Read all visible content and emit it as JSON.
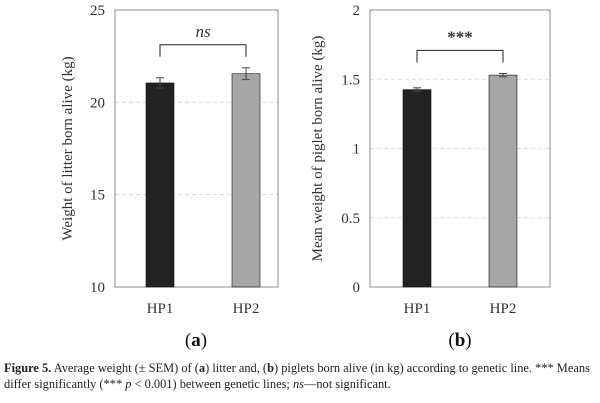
{
  "chart_data": [
    {
      "type": "bar",
      "panel_label": "a",
      "categories": [
        "HP1",
        "HP2"
      ],
      "values": [
        21.05,
        21.55
      ],
      "errors": [
        0.28,
        0.32
      ],
      "ylabel": "Weight of litter born alive (kg)",
      "ylim": [
        10,
        25
      ],
      "yticks": [
        "10",
        "15",
        "20",
        "25"
      ],
      "grid": true,
      "significance": "ns",
      "colors": [
        "#222222",
        "#a6a6a6"
      ]
    },
    {
      "type": "bar",
      "panel_label": "b",
      "categories": [
        "HP1",
        "HP2"
      ],
      "values": [
        1.425,
        1.53
      ],
      "errors": [
        0.013,
        0.012
      ],
      "ylabel": "Mean weight of piglet born alive (kg)",
      "ylim": [
        0,
        2
      ],
      "yticks": [
        "0",
        "0.5",
        "1",
        "1.5",
        "2"
      ],
      "grid": true,
      "significance": "***",
      "colors": [
        "#222222",
        "#a6a6a6"
      ]
    }
  ],
  "caption": {
    "figure_label": "Figure 5.",
    "part1": " Average weight (± SEM) of (",
    "a": "a",
    "part2": ") litter and, (",
    "b": "b",
    "part3": ") piglets born alive (in kg) according to genetic line. *** Means differ significantly (*** ",
    "p": "p",
    "part4": " < 0.001) between genetic lines; ",
    "ns": "ns",
    "part5": "—not significant."
  }
}
